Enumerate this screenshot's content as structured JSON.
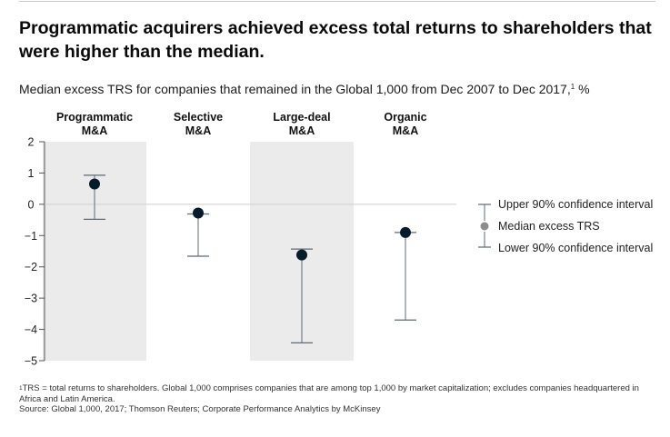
{
  "title": "Programmatic acquirers achieved excess total returns to shareholders that were higher than the median.",
  "subtitle": {
    "text": "Median excess TRS for companies that remained in the Global 1,000 from Dec 2007 to Dec 2017,",
    "footnote_marker": "1",
    "unit": " %"
  },
  "footnotes": {
    "marker": "1",
    "note": "TRS = total returns to shareholders. Global 1,000 comprises companies that are among top 1,000 by market capitalization; excludes companies headquartered in Africa and Latin America.",
    "source": "Source: Global 1,000, 2017; Thomson Reuters; Corporate Performance Analytics by McKinsey"
  },
  "colors": {
    "shade": "#ebebeb",
    "dot": "#051c2c",
    "whisker": "#5e6b75",
    "zero_line": "#cfcfcf",
    "legend_dot": "#8c8c8c",
    "text": "#222222"
  },
  "chart_data": {
    "type": "error-bar",
    "title": "Median excess TRS for companies that remained in the Global 1,000 from Dec 2007 to Dec 2017, %",
    "ylim": [
      -5,
      2
    ],
    "yticks": [
      2,
      1,
      0,
      -1,
      -2,
      -3,
      -4,
      -5
    ],
    "categories": [
      {
        "label_lines": [
          "Programmatic",
          "M&A"
        ],
        "median": 0.65,
        "upper": 0.93,
        "lower": -0.48,
        "shaded": true
      },
      {
        "label_lines": [
          "Selective",
          "M&A"
        ],
        "median": -0.28,
        "upper": -0.31,
        "lower": -1.66,
        "shaded": false
      },
      {
        "label_lines": [
          "Large-deal",
          "M&A"
        ],
        "median": -1.62,
        "upper": -1.43,
        "lower": -4.43,
        "shaded": true
      },
      {
        "label_lines": [
          "Organic",
          "M&A"
        ],
        "median": -0.9,
        "upper": -0.9,
        "lower": -3.7,
        "shaded": false
      }
    ],
    "legend": {
      "upper": "Upper 90% confidence interval",
      "median": "Median excess TRS",
      "lower": "Lower 90% confidence interval"
    },
    "legend_position": "right"
  }
}
